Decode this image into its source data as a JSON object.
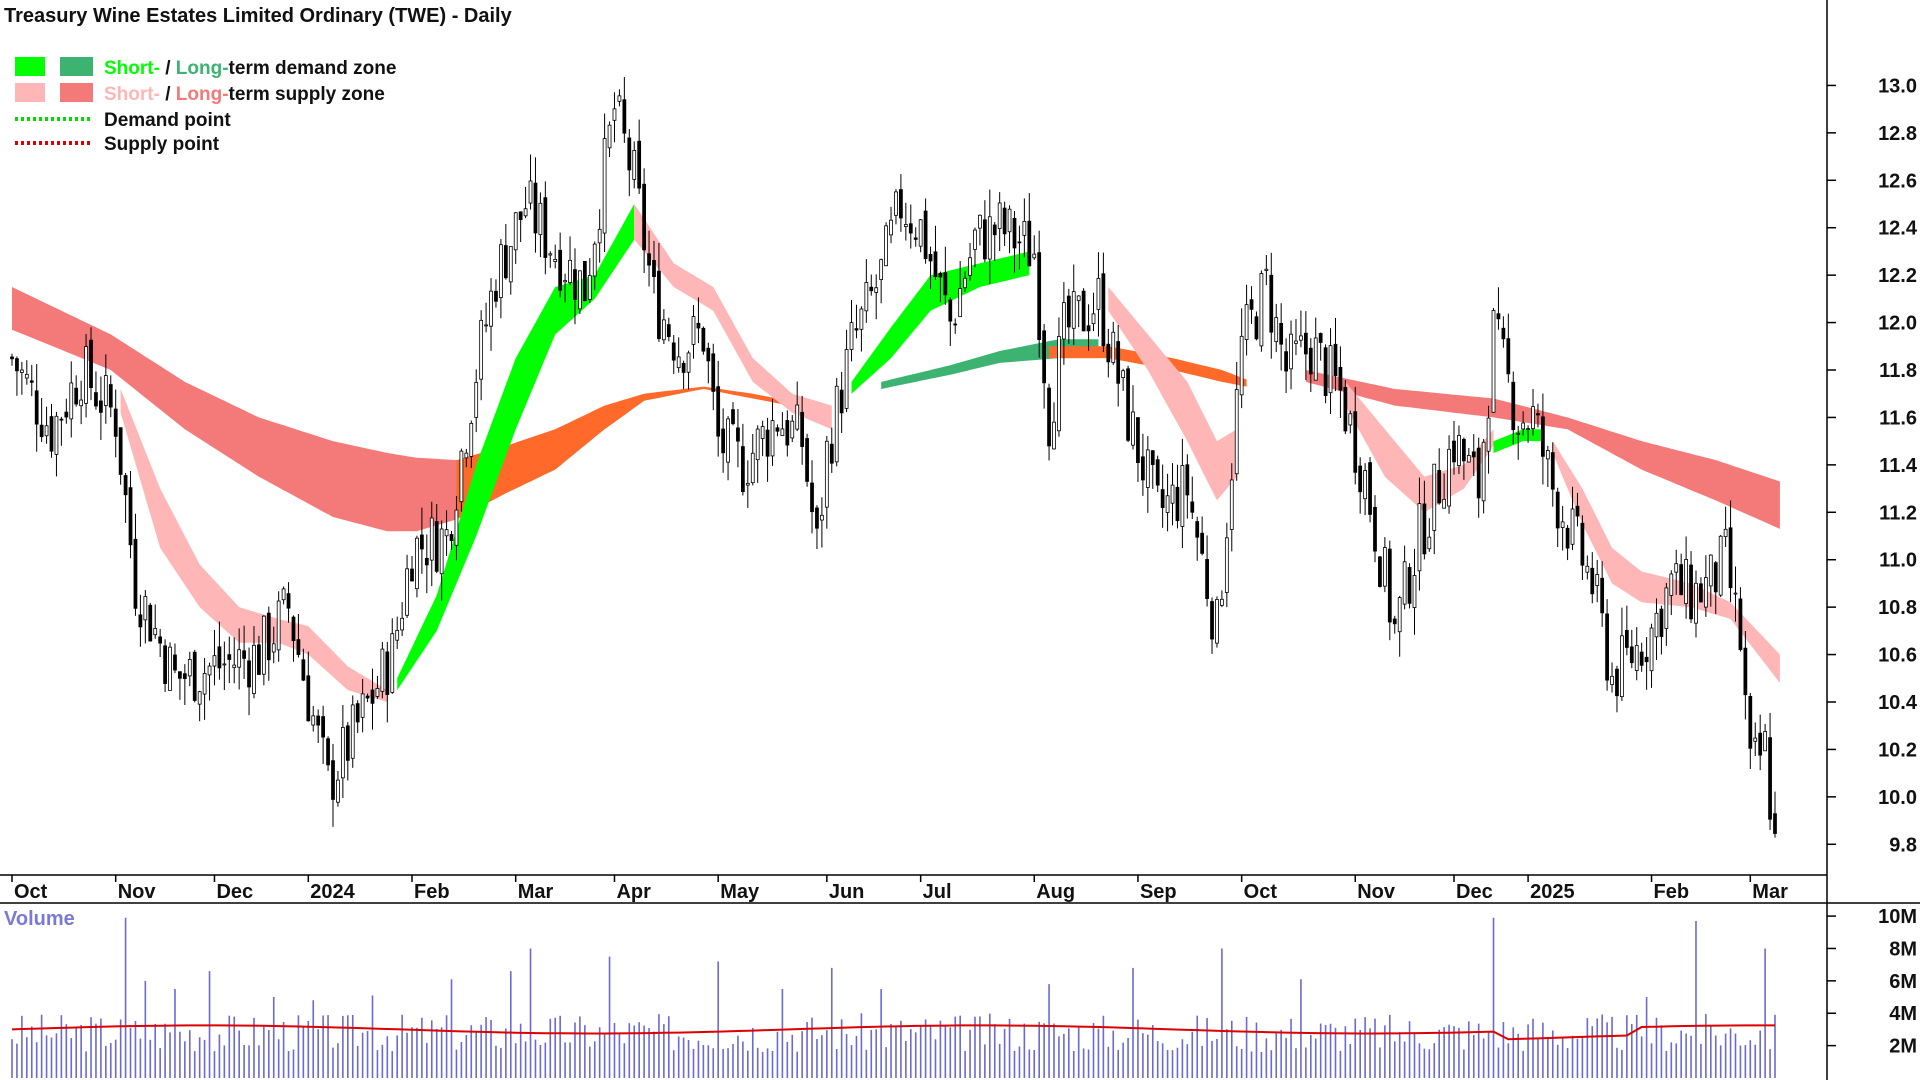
{
  "chart_data": {
    "type": "candlestick",
    "title": "Treasury Wine Estates Limited Ordinary (TWE) - Daily",
    "price_axis": {
      "ylim": [
        9.7,
        13.2
      ],
      "ticks": [
        "13.0",
        "12.8",
        "12.6",
        "12.4",
        "12.2",
        "12.0",
        "11.8",
        "11.6",
        "11.4",
        "11.2",
        "11.0",
        "10.8",
        "10.6",
        "10.4",
        "10.2",
        "10.0",
        "9.8"
      ],
      "tick_values": [
        13.0,
        12.8,
        12.6,
        12.4,
        12.2,
        12.0,
        11.8,
        11.6,
        11.4,
        11.2,
        11.0,
        10.8,
        10.6,
        10.4,
        10.2,
        10.0,
        9.8
      ]
    },
    "time_axis": {
      "labels": [
        "Oct",
        "Nov",
        "Dec",
        "2024",
        "Feb",
        "Mar",
        "Apr",
        "May",
        "Jun",
        "Jul",
        "Aug",
        "Sep",
        "Oct",
        "Nov",
        "Dec",
        "2025",
        "Feb",
        "Mar"
      ],
      "bar_index": [
        0,
        21,
        41,
        60,
        81,
        102,
        122,
        143,
        165,
        184,
        207,
        228,
        249,
        272,
        292,
        307,
        332,
        352
      ],
      "bold_labels": [
        "2024",
        "2025"
      ],
      "total_bars": 358
    },
    "legend": [
      {
        "label_a": "Short-",
        "sep": " / ",
        "label_b": "Long-",
        "rest": "term demand zone",
        "color_a": "#00ff00",
        "color_b": "#3cb371"
      },
      {
        "label_a": "Short-",
        "sep": " / ",
        "label_b": "Long-",
        "rest": "term supply zone",
        "color_a": "#ffb6b6",
        "color_b": "#f47a7a"
      },
      {
        "label": "Demand point",
        "color": "#00dd00"
      },
      {
        "label": "Supply point",
        "color": "#dd0000"
      }
    ],
    "price_path": [
      [
        0,
        11.85
      ],
      [
        8,
        11.55
      ],
      [
        14,
        11.8
      ],
      [
        21,
        11.6
      ],
      [
        25,
        10.9
      ],
      [
        33,
        10.5
      ],
      [
        41,
        10.55
      ],
      [
        50,
        10.6
      ],
      [
        56,
        10.8
      ],
      [
        64,
        10.05
      ],
      [
        70,
        10.3
      ],
      [
        77,
        10.6
      ],
      [
        81,
        11.05
      ],
      [
        88,
        11.1
      ],
      [
        94,
        11.8
      ],
      [
        98,
        12.2
      ],
      [
        104,
        12.5
      ],
      [
        110,
        12.3
      ],
      [
        116,
        12.15
      ],
      [
        122,
        12.9
      ],
      [
        126,
        12.6
      ],
      [
        130,
        12.1
      ],
      [
        135,
        11.9
      ],
      [
        140,
        11.95
      ],
      [
        143,
        11.5
      ],
      [
        148,
        11.4
      ],
      [
        155,
        11.6
      ],
      [
        160,
        11.5
      ],
      [
        163,
        11.05
      ],
      [
        165,
        11.45
      ],
      [
        170,
        11.9
      ],
      [
        176,
        12.2
      ],
      [
        180,
        12.5
      ],
      [
        184,
        12.4
      ],
      [
        190,
        12.0
      ],
      [
        195,
        12.35
      ],
      [
        200,
        12.4
      ],
      [
        207,
        12.3
      ],
      [
        210,
        11.6
      ],
      [
        213,
        11.95
      ],
      [
        220,
        12.1
      ],
      [
        226,
        11.6
      ],
      [
        232,
        11.2
      ],
      [
        238,
        11.3
      ],
      [
        244,
        10.7
      ],
      [
        249,
        11.9
      ],
      [
        254,
        12.15
      ],
      [
        258,
        11.8
      ],
      [
        263,
        11.9
      ],
      [
        269,
        11.7
      ],
      [
        274,
        11.35
      ],
      [
        280,
        10.7
      ],
      [
        285,
        11.1
      ],
      [
        292,
        11.5
      ],
      [
        297,
        11.3
      ],
      [
        300,
        11.95
      ],
      [
        305,
        11.6
      ],
      [
        308,
        11.6
      ],
      [
        312,
        11.3
      ],
      [
        316,
        11.1
      ],
      [
        320,
        10.9
      ],
      [
        324,
        10.5
      ],
      [
        328,
        10.6
      ],
      [
        332,
        10.7
      ],
      [
        336,
        10.9
      ],
      [
        340,
        10.85
      ],
      [
        344,
        10.9
      ],
      [
        347,
        11.0
      ],
      [
        350,
        10.65
      ],
      [
        352,
        10.1
      ],
      [
        355,
        10.2
      ],
      [
        357,
        9.8
      ]
    ],
    "zones": {
      "long_supply_red": {
        "color": "#f47a7a",
        "upper": [
          [
            0,
            12.15
          ],
          [
            20,
            11.95
          ],
          [
            35,
            11.75
          ],
          [
            50,
            11.6
          ],
          [
            65,
            11.5
          ],
          [
            76,
            11.45
          ],
          [
            82,
            11.43
          ],
          [
            90,
            11.42
          ]
        ],
        "lower": [
          [
            0,
            11.97
          ],
          [
            20,
            11.8
          ],
          [
            35,
            11.55
          ],
          [
            50,
            11.35
          ],
          [
            65,
            11.18
          ],
          [
            76,
            11.12
          ],
          [
            82,
            11.12
          ],
          [
            90,
            11.17
          ]
        ]
      },
      "long_demand_orange": {
        "color": "#ff6a2a",
        "upper": [
          [
            90,
            11.42
          ],
          [
            100,
            11.48
          ],
          [
            110,
            11.55
          ],
          [
            120,
            11.65
          ],
          [
            128,
            11.7
          ],
          [
            140,
            11.73
          ],
          [
            150,
            11.7
          ],
          [
            160,
            11.66
          ]
        ],
        "lower": [
          [
            90,
            11.17
          ],
          [
            100,
            11.28
          ],
          [
            110,
            11.38
          ],
          [
            120,
            11.55
          ],
          [
            128,
            11.67
          ],
          [
            140,
            11.72
          ],
          [
            150,
            11.68
          ],
          [
            160,
            11.64
          ]
        ]
      },
      "long_demand_green": {
        "color": "#3cb371",
        "upper": [
          [
            176,
            11.75
          ],
          [
            190,
            11.82
          ],
          [
            200,
            11.88
          ],
          [
            212,
            11.93
          ],
          [
            220,
            11.93
          ]
        ],
        "lower": [
          [
            176,
            11.72
          ],
          [
            190,
            11.78
          ],
          [
            200,
            11.83
          ],
          [
            212,
            11.85
          ],
          [
            220,
            11.85
          ]
        ]
      },
      "long_supply_orange_mid": {
        "color": "#ff6a2a",
        "upper": [
          [
            210,
            11.9
          ],
          [
            222,
            11.9
          ],
          [
            235,
            11.85
          ],
          [
            245,
            11.8
          ],
          [
            250,
            11.76
          ]
        ],
        "lower": [
          [
            210,
            11.85
          ],
          [
            222,
            11.85
          ],
          [
            235,
            11.8
          ],
          [
            245,
            11.75
          ],
          [
            250,
            11.73
          ]
        ]
      },
      "long_supply_red2": {
        "color": "#f47a7a",
        "upper": [
          [
            262,
            11.8
          ],
          [
            280,
            11.72
          ],
          [
            300,
            11.68
          ],
          [
            315,
            11.6
          ],
          [
            330,
            11.5
          ],
          [
            345,
            11.42
          ],
          [
            358,
            11.33
          ]
        ],
        "lower": [
          [
            262,
            11.75
          ],
          [
            280,
            11.65
          ],
          [
            300,
            11.6
          ],
          [
            315,
            11.55
          ],
          [
            330,
            11.38
          ],
          [
            345,
            11.25
          ],
          [
            358,
            11.13
          ]
        ]
      },
      "short_supply_pink1": {
        "color": "#ffb6b6",
        "upper": [
          [
            22,
            11.72
          ],
          [
            30,
            11.3
          ],
          [
            38,
            10.98
          ],
          [
            46,
            10.8
          ],
          [
            54,
            10.75
          ],
          [
            60,
            10.72
          ],
          [
            68,
            10.55
          ],
          [
            76,
            10.45
          ]
        ],
        "lower": [
          [
            22,
            11.62
          ],
          [
            30,
            11.05
          ],
          [
            38,
            10.8
          ],
          [
            46,
            10.65
          ],
          [
            54,
            10.65
          ],
          [
            60,
            10.6
          ],
          [
            68,
            10.45
          ],
          [
            76,
            10.4
          ]
        ]
      },
      "short_demand_green1": {
        "color": "#00ff00",
        "upper": [
          [
            78,
            10.5
          ],
          [
            86,
            10.85
          ],
          [
            94,
            11.4
          ],
          [
            102,
            11.85
          ],
          [
            110,
            12.15
          ],
          [
            118,
            12.2
          ],
          [
            126,
            12.5
          ]
        ],
        "lower": [
          [
            78,
            10.45
          ],
          [
            86,
            10.7
          ],
          [
            94,
            11.1
          ],
          [
            102,
            11.55
          ],
          [
            110,
            11.95
          ],
          [
            118,
            12.1
          ],
          [
            126,
            12.35
          ]
        ]
      },
      "short_supply_pink2": {
        "color": "#ffb6b6",
        "upper": [
          [
            126,
            12.5
          ],
          [
            134,
            12.25
          ],
          [
            142,
            12.15
          ],
          [
            150,
            11.85
          ],
          [
            158,
            11.7
          ],
          [
            166,
            11.65
          ]
        ],
        "lower": [
          [
            126,
            12.35
          ],
          [
            134,
            12.15
          ],
          [
            142,
            12.05
          ],
          [
            150,
            11.75
          ],
          [
            158,
            11.62
          ],
          [
            166,
            11.55
          ]
        ]
      },
      "short_demand_green2": {
        "color": "#00ff00",
        "upper": [
          [
            170,
            11.75
          ],
          [
            178,
            11.98
          ],
          [
            186,
            12.2
          ],
          [
            196,
            12.25
          ],
          [
            206,
            12.3
          ]
        ],
        "lower": [
          [
            170,
            11.7
          ],
          [
            178,
            11.85
          ],
          [
            186,
            12.05
          ],
          [
            196,
            12.15
          ],
          [
            206,
            12.2
          ]
        ]
      },
      "short_supply_pink3": {
        "color": "#ffb6b6",
        "upper": [
          [
            222,
            12.15
          ],
          [
            230,
            11.95
          ],
          [
            238,
            11.75
          ],
          [
            244,
            11.5
          ],
          [
            248,
            11.55
          ]
        ],
        "lower": [
          [
            222,
            12.05
          ],
          [
            230,
            11.8
          ],
          [
            238,
            11.5
          ],
          [
            244,
            11.25
          ],
          [
            248,
            11.35
          ]
        ]
      },
      "short_supply_pink4": {
        "color": "#ffb6b6",
        "upper": [
          [
            270,
            11.75
          ],
          [
            278,
            11.55
          ],
          [
            286,
            11.35
          ],
          [
            294,
            11.4
          ],
          [
            300,
            11.55
          ]
        ],
        "lower": [
          [
            270,
            11.65
          ],
          [
            278,
            11.35
          ],
          [
            286,
            11.2
          ],
          [
            294,
            11.3
          ],
          [
            300,
            11.48
          ]
        ]
      },
      "short_demand_green3": {
        "color": "#00ff00",
        "upper": [
          [
            300,
            11.5
          ],
          [
            306,
            11.55
          ],
          [
            310,
            11.55
          ]
        ],
        "lower": [
          [
            300,
            11.45
          ],
          [
            306,
            11.5
          ],
          [
            310,
            11.5
          ]
        ]
      },
      "short_supply_pink5": {
        "color": "#ffb6b6",
        "upper": [
          [
            312,
            11.5
          ],
          [
            318,
            11.3
          ],
          [
            324,
            11.05
          ],
          [
            330,
            10.95
          ],
          [
            340,
            10.9
          ],
          [
            348,
            10.82
          ],
          [
            358,
            10.6
          ]
        ],
        "lower": [
          [
            312,
            11.45
          ],
          [
            318,
            11.15
          ],
          [
            324,
            10.9
          ],
          [
            330,
            10.82
          ],
          [
            340,
            10.8
          ],
          [
            348,
            10.75
          ],
          [
            358,
            10.48
          ]
        ]
      }
    },
    "volume_axis": {
      "ylabel": "Volume",
      "ticks": [
        "10M",
        "8M",
        "6M",
        "4M",
        "2M"
      ],
      "tick_values": [
        10,
        8,
        6,
        4,
        2
      ],
      "ylim": [
        0,
        10.5
      ],
      "unit": "M",
      "ma_value": 3.0,
      "ma_color": "#dd0000",
      "bar_color": "#6a6ad0",
      "spikes": [
        [
          23,
          9.9
        ],
        [
          27,
          6.0
        ],
        [
          33,
          5.5
        ],
        [
          40,
          6.6
        ],
        [
          53,
          5.0
        ],
        [
          61,
          4.8
        ],
        [
          73,
          5.1
        ],
        [
          89,
          6.1
        ],
        [
          101,
          6.6
        ],
        [
          105,
          8.0
        ],
        [
          121,
          7.5
        ],
        [
          143,
          7.2
        ],
        [
          156,
          5.5
        ],
        [
          166,
          6.8
        ],
        [
          176,
          5.5
        ],
        [
          210,
          5.8
        ],
        [
          227,
          6.8
        ],
        [
          245,
          8.0
        ],
        [
          261,
          6.1
        ],
        [
          300,
          9.9
        ],
        [
          331,
          5.0
        ],
        [
          341,
          9.7
        ],
        [
          355,
          8.0
        ]
      ]
    }
  }
}
